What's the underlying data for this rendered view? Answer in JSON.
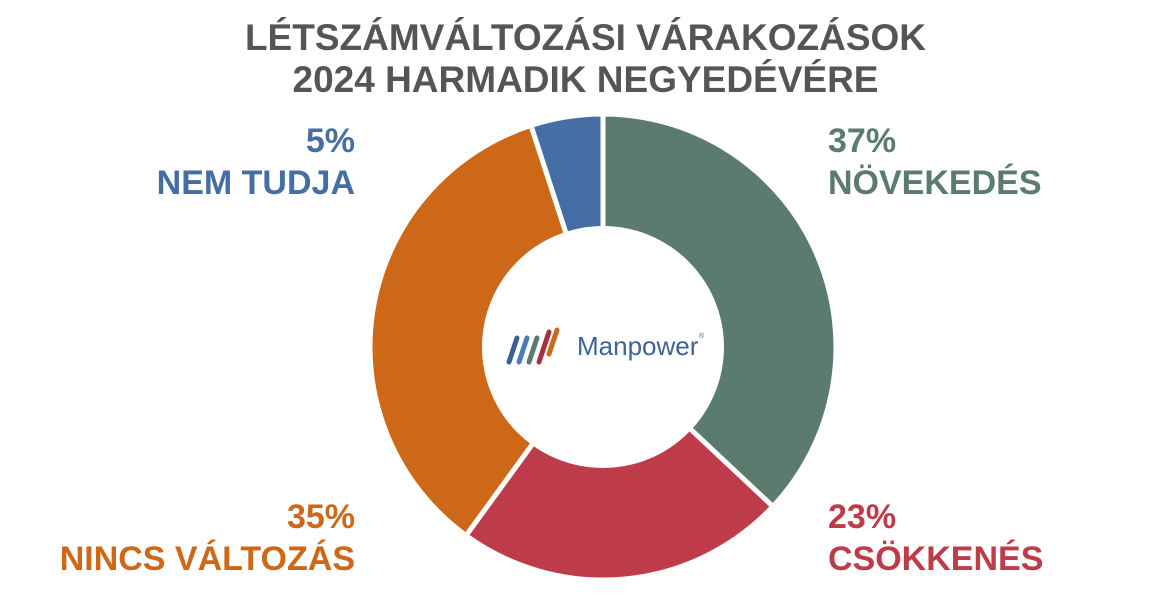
{
  "title": {
    "line1": "LÉTSZÁMVÁLTOZÁSI VÁRAKOZÁSOK",
    "line2": "2024 HARMADIK NEGYEDÉVÉRE"
  },
  "labels": {
    "novekedes": {
      "pct": "37%",
      "name": "NÖVEKEDÉS"
    },
    "csokkenes": {
      "pct": "23%",
      "name": "CSÖKKENÉS"
    },
    "nincs": {
      "pct": "35%",
      "name": "NINCS VÁLTOZÁS"
    },
    "nemtudja": {
      "pct": "5%",
      "name": "NEM TUDJA"
    }
  },
  "logo": {
    "text": "Manpower",
    "mark": "®"
  },
  "colors": {
    "novekedes": "#5b7b6e",
    "csokkenes": "#be3b4a",
    "nincs": "#cd6818",
    "nemtudja": "#456ea4",
    "title": "#555555"
  },
  "chart_data": {
    "type": "pie",
    "variant": "donut",
    "title": "LÉTSZÁMVÁLTOZÁSI VÁRAKOZÁSOK 2024 HARMADIK NEGYEDÉVÉRE",
    "categories": [
      "NÖVEKEDÉS",
      "CSÖKKENÉS",
      "NINCS VÁLTOZÁS",
      "NEM TUDJA"
    ],
    "values": [
      37,
      23,
      35,
      5
    ],
    "unit": "%",
    "colors": [
      "#5b7b6e",
      "#be3b4a",
      "#cd6818",
      "#456ea4"
    ],
    "start_angle": "12 o'clock, clockwise",
    "center_label": "Manpower logo",
    "legend": "none; outside data labels"
  }
}
